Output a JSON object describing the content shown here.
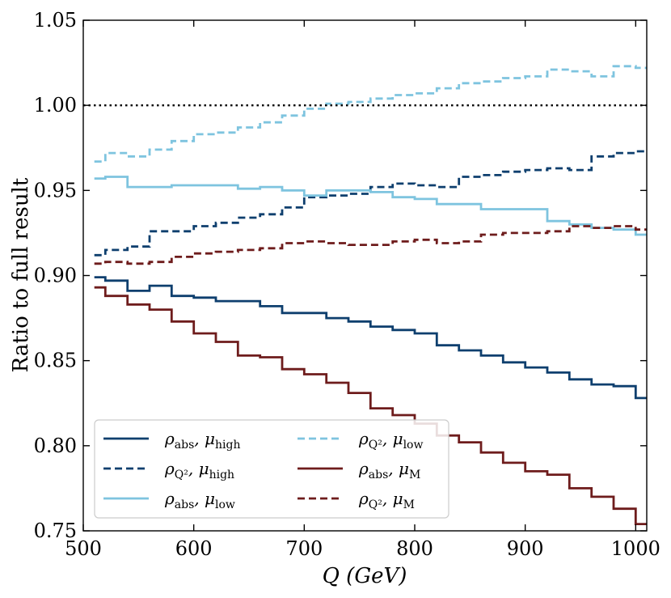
{
  "chart_data": {
    "type": "line",
    "step": true,
    "xlabel": "Q (GeV)",
    "ylabel": "Ratio to full result",
    "xlim": [
      500,
      1010
    ],
    "ylim": [
      0.75,
      1.05
    ],
    "xticks": [
      500,
      600,
      700,
      800,
      900,
      1000
    ],
    "xtick_labels": [
      "500",
      "600",
      "700",
      "800",
      "900",
      "1000"
    ],
    "yticks": [
      0.75,
      0.8,
      0.85,
      0.9,
      0.95,
      1.0,
      1.05
    ],
    "ytick_labels": [
      "0.75",
      "0.80",
      "0.85",
      "0.90",
      "0.95",
      "1.00",
      "1.05"
    ],
    "reference_line": {
      "y": 1.0,
      "style": "dotted",
      "color": "#000000"
    },
    "bin_edges": [
      510,
      520,
      540,
      560,
      580,
      600,
      620,
      640,
      660,
      680,
      700,
      720,
      740,
      760,
      780,
      800,
      820,
      840,
      860,
      880,
      900,
      920,
      940,
      960,
      980,
      1000,
      1010
    ],
    "legend": {
      "location": "bottom-left",
      "columns": 2
    },
    "series": [
      {
        "name": "ρabs, μhigh",
        "label_main": "ρ",
        "label_sub1": "abs",
        "label_mid": ", μ",
        "label_sub2": "high",
        "color": "#0e3f6e",
        "dash": "solid",
        "values": [
          0.899,
          0.897,
          0.891,
          0.894,
          0.888,
          0.887,
          0.885,
          0.885,
          0.882,
          0.878,
          0.878,
          0.875,
          0.873,
          0.87,
          0.868,
          0.866,
          0.859,
          0.856,
          0.853,
          0.849,
          0.846,
          0.843,
          0.839,
          0.836,
          0.835,
          0.828
        ]
      },
      {
        "name": "ρQ², μhigh",
        "label_main": "ρ",
        "label_sub1": "Q²",
        "label_mid": ", μ",
        "label_sub2": "high",
        "color": "#0e3f6e",
        "dash": "dashed",
        "values": [
          0.912,
          0.915,
          0.917,
          0.926,
          0.926,
          0.929,
          0.931,
          0.934,
          0.936,
          0.94,
          0.946,
          0.947,
          0.948,
          0.952,
          0.954,
          0.953,
          0.952,
          0.958,
          0.959,
          0.961,
          0.962,
          0.963,
          0.962,
          0.97,
          0.972,
          0.973
        ]
      },
      {
        "name": "ρabs, μlow",
        "label_main": "ρ",
        "label_sub1": "abs",
        "label_mid": ", μ",
        "label_sub2": "low",
        "color": "#7ec4df",
        "dash": "solid",
        "values": [
          0.957,
          0.958,
          0.952,
          0.952,
          0.953,
          0.953,
          0.953,
          0.951,
          0.952,
          0.95,
          0.947,
          0.95,
          0.95,
          0.949,
          0.946,
          0.945,
          0.942,
          0.942,
          0.939,
          0.939,
          0.939,
          0.932,
          0.93,
          0.928,
          0.927,
          0.924
        ]
      },
      {
        "name": "ρQ², μlow",
        "label_main": "ρ",
        "label_sub1": "Q²",
        "label_mid": ", μ",
        "label_sub2": "low",
        "color": "#7ec4df",
        "dash": "dashed",
        "values": [
          0.967,
          0.972,
          0.97,
          0.974,
          0.979,
          0.983,
          0.984,
          0.987,
          0.99,
          0.994,
          0.998,
          1.001,
          1.002,
          1.004,
          1.006,
          1.007,
          1.01,
          1.013,
          1.014,
          1.016,
          1.017,
          1.021,
          1.02,
          1.017,
          1.023,
          1.022
        ]
      },
      {
        "name": "ρabs, μM",
        "label_main": "ρ",
        "label_sub1": "abs",
        "label_mid": ", μ",
        "label_sub2": "M",
        "color": "#6e1c1c",
        "dash": "solid",
        "values": [
          0.893,
          0.888,
          0.883,
          0.88,
          0.873,
          0.866,
          0.861,
          0.853,
          0.852,
          0.845,
          0.842,
          0.837,
          0.831,
          0.822,
          0.818,
          0.813,
          0.806,
          0.802,
          0.796,
          0.79,
          0.785,
          0.783,
          0.775,
          0.77,
          0.763,
          0.754
        ]
      },
      {
        "name": "ρQ², μM",
        "label_main": "ρ",
        "label_sub1": "Q²",
        "label_mid": ", μ",
        "label_sub2": "M",
        "color": "#6e1c1c",
        "dash": "dashed",
        "values": [
          0.907,
          0.908,
          0.907,
          0.908,
          0.911,
          0.913,
          0.914,
          0.915,
          0.916,
          0.919,
          0.92,
          0.919,
          0.918,
          0.918,
          0.92,
          0.921,
          0.919,
          0.92,
          0.924,
          0.925,
          0.925,
          0.926,
          0.929,
          0.928,
          0.929,
          0.927
        ]
      }
    ]
  }
}
